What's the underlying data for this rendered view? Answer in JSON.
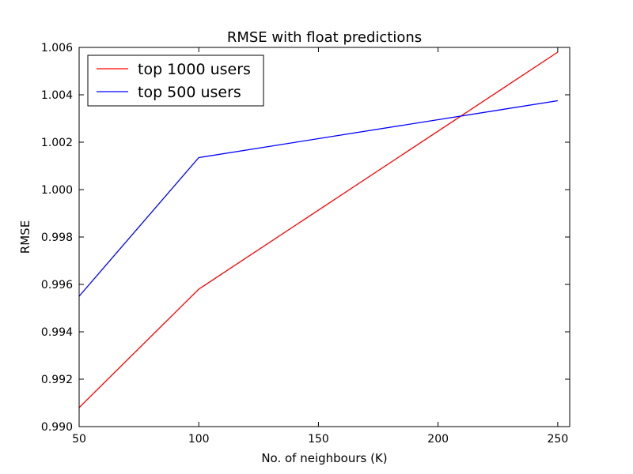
{
  "chart_data": {
    "type": "line",
    "title": "RMSE with float predictions",
    "xlabel": "No. of neighbours (K)",
    "ylabel": "RMSE",
    "xlim": [
      50,
      255
    ],
    "ylim": [
      0.99,
      1.006
    ],
    "x_ticks": [
      "50",
      "100",
      "150",
      "200",
      "250"
    ],
    "y_ticks": [
      "0.990",
      "0.992",
      "0.994",
      "0.996",
      "0.998",
      "1.000",
      "1.002",
      "1.004",
      "1.006"
    ],
    "grid": false,
    "legend_position": "top-left",
    "series": [
      {
        "name": "top 1000 users",
        "color": "#ff0000",
        "x": [
          50,
          100,
          250
        ],
        "y": [
          0.9908,
          0.9958,
          1.0058
        ]
      },
      {
        "name": "top 500 users",
        "color": "#0000ff",
        "x": [
          50,
          100,
          250
        ],
        "y": [
          0.9955,
          1.00135,
          1.00375
        ]
      }
    ]
  }
}
